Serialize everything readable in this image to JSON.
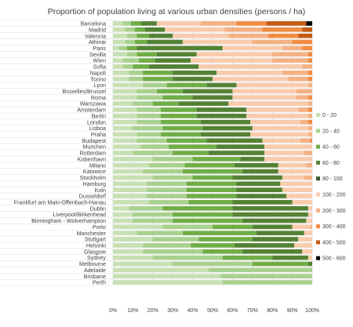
{
  "chart_data": {
    "type": "bar",
    "orientation": "horizontal",
    "stacked": "percent",
    "title": "Proportion of population living at various urban densities (persons / ha)",
    "xlabel": "",
    "ylabel": "",
    "xlim": [
      0,
      100
    ],
    "x_ticks": [
      "0%",
      "10%",
      "20%",
      "30%",
      "40%",
      "50%",
      "60%",
      "70%",
      "80%",
      "90%",
      "100%"
    ],
    "grid": true,
    "legend_position": "right",
    "categories": [
      "Barcelona",
      "Madrid",
      "Valencia",
      "Athinai",
      "Paris",
      "Sevilla",
      "Wien",
      "Sofia",
      "Napoli",
      "Torino",
      "Lyon",
      "Bruxelles/Brussel",
      "Roma",
      "Warszawa",
      "Amsterdam",
      "Berlin",
      "London",
      "Lisboa",
      "Praha",
      "Budapest",
      "Munchen",
      "Rotterdam",
      "Kobenhavn",
      "Milano",
      "Katowice",
      "Stockholm",
      "Hamburg",
      "Koln",
      "Dusseldorf",
      "Frankfurt am Main-Offenbach-Hanau",
      "Dublin",
      "Liverpool/Birkenhead",
      "Birmingham - Wolverhampton",
      "Porto",
      "Manchester",
      "Stuttgart",
      "Helsinki",
      "Glasgow",
      "Sydney",
      "Melbourne",
      "Adelaide",
      "Brisbane",
      "Perth"
    ],
    "series": [
      {
        "name": "0 - 20",
        "color": "#c7e0b4",
        "values": [
          5,
          6,
          7,
          6,
          3,
          7,
          5,
          5,
          8,
          8,
          15,
          12,
          12,
          10,
          12,
          12,
          12,
          10,
          12,
          12,
          14,
          10,
          20,
          18,
          15,
          20,
          17,
          17,
          17,
          18,
          8,
          10,
          10,
          25,
          12,
          20,
          15,
          15,
          20,
          30,
          48,
          54,
          55
        ]
      },
      {
        "name": "20 - 40",
        "color": "#a9d18e",
        "values": [
          4,
          5,
          5,
          5,
          4,
          5,
          8,
          5,
          7,
          7,
          12,
          10,
          13,
          10,
          12,
          12,
          12,
          15,
          12,
          15,
          14,
          20,
          20,
          18,
          20,
          20,
          20,
          20,
          20,
          20,
          17,
          20,
          20,
          25,
          23,
          23,
          24,
          30,
          35,
          40,
          52,
          46,
          45
        ]
      },
      {
        "name": "40 - 60",
        "color": "#70ad47",
        "values": [
          5,
          5,
          6,
          6,
          5,
          10,
          8,
          8,
          15,
          15,
          20,
          13,
          15,
          13,
          18,
          18,
          20,
          20,
          20,
          20,
          24,
          18,
          24,
          25,
          30,
          20,
          25,
          25,
          25,
          22,
          35,
          30,
          35,
          20,
          37,
          27,
          22,
          20,
          25,
          28,
          0,
          0,
          0
        ]
      },
      {
        "name": "60 - 80",
        "color": "#548235",
        "values": [
          8,
          10,
          12,
          18,
          43,
          20,
          18,
          25,
          22,
          20,
          15,
          25,
          20,
          25,
          25,
          25,
          25,
          25,
          25,
          28,
          24,
          28,
          12,
          22,
          18,
          25,
          22,
          23,
          25,
          30,
          38,
          38,
          32,
          20,
          24,
          23,
          30,
          30,
          18,
          2,
          0,
          0,
          0
        ]
      },
      {
        "name": "80 - 100",
        "color": "#375623",
        "values": [
          0,
          0,
          0,
          0,
          0,
          0,
          0,
          0,
          0,
          0,
          0,
          0,
          0,
          0,
          0,
          0,
          0,
          0,
          0,
          0,
          0,
          0,
          0,
          0,
          0,
          0,
          0,
          0,
          0,
          0,
          0,
          0,
          0,
          0,
          0,
          0,
          0,
          0,
          0,
          0,
          0,
          0,
          0
        ]
      },
      {
        "name": "100 - 200",
        "color": "#f8cbad",
        "values": [
          22,
          30,
          28,
          35,
          30,
          38,
          41,
          52,
          33,
          38,
          36,
          32,
          32,
          40,
          26,
          31,
          25,
          28,
          29,
          19,
          24,
          20,
          24,
          14,
          17,
          11,
          16,
          15,
          13,
          10,
          2,
          2,
          3,
          9,
          4,
          7,
          9,
          5,
          2,
          0,
          0,
          0,
          0
        ]
      },
      {
        "name": "200 - 300",
        "color": "#f4b183",
        "values": [
          18,
          19,
          20,
          20,
          10,
          18,
          18,
          5,
          13,
          10,
          2,
          8,
          6,
          2,
          5,
          2,
          4,
          2,
          2,
          5,
          0,
          4,
          0,
          3,
          0,
          4,
          0,
          0,
          0,
          0,
          0,
          0,
          0,
          1,
          0,
          0,
          0,
          0,
          0,
          0,
          0,
          0,
          0
        ]
      },
      {
        "name": "300 - 400",
        "color": "#f08c42",
        "values": [
          15,
          20,
          15,
          10,
          5,
          2,
          2,
          0,
          2,
          2,
          0,
          0,
          2,
          0,
          2,
          0,
          2,
          0,
          0,
          1,
          0,
          0,
          0,
          0,
          0,
          0,
          0,
          0,
          0,
          0,
          0,
          0,
          0,
          0,
          0,
          0,
          0,
          0,
          0,
          0,
          0,
          0,
          0
        ]
      },
      {
        "name": "400 - 500",
        "color": "#c55a11",
        "values": [
          20,
          5,
          7,
          0,
          0,
          0,
          0,
          0,
          0,
          0,
          0,
          0,
          0,
          0,
          0,
          0,
          0,
          0,
          0,
          0,
          0,
          0,
          0,
          0,
          0,
          0,
          0,
          0,
          0,
          0,
          0,
          0,
          0,
          0,
          0,
          0,
          0,
          0,
          0,
          0,
          0,
          0,
          0
        ]
      },
      {
        "name": "500 - 600",
        "color": "#000000",
        "values": [
          3,
          0,
          0,
          0,
          0,
          0,
          0,
          0,
          0,
          0,
          0,
          0,
          0,
          0,
          0,
          0,
          0,
          0,
          0,
          0,
          0,
          0,
          0,
          0,
          0,
          0,
          0,
          0,
          0,
          0,
          0,
          0,
          0,
          0,
          0,
          0,
          0,
          0,
          0,
          0,
          0,
          0,
          0
        ]
      }
    ]
  }
}
